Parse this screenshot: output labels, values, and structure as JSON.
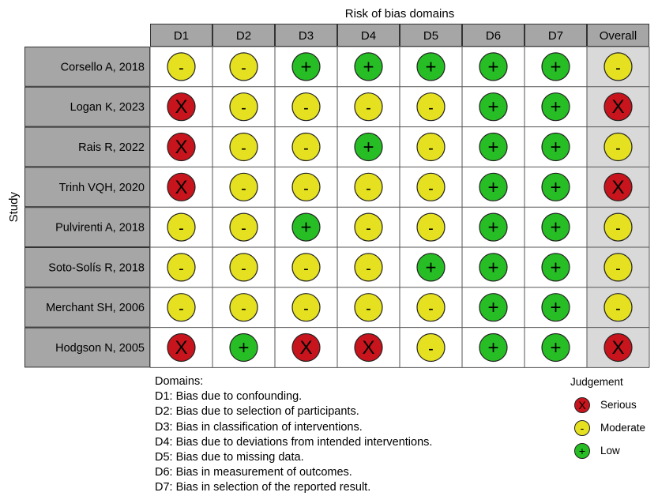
{
  "chart_data": {
    "type": "table",
    "title": "Risk of bias domains",
    "ylabel": "Study",
    "columns": [
      "D1",
      "D2",
      "D3",
      "D4",
      "D5",
      "D6",
      "D7",
      "Overall"
    ],
    "rows": [
      {
        "study": "Corsello A, 2018",
        "judgements": [
          "-",
          "-",
          "+",
          "+",
          "+",
          "+",
          "+",
          "-"
        ]
      },
      {
        "study": "Logan K, 2023",
        "judgements": [
          "X",
          "-",
          "-",
          "-",
          "-",
          "+",
          "+",
          "X"
        ]
      },
      {
        "study": "Rais R, 2022",
        "judgements": [
          "X",
          "-",
          "-",
          "+",
          "-",
          "+",
          "+",
          "-"
        ]
      },
      {
        "study": "Trinh VQH, 2020",
        "judgements": [
          "X",
          "-",
          "-",
          "-",
          "-",
          "+",
          "+",
          "X"
        ]
      },
      {
        "study": "Pulvirenti A, 2018",
        "judgements": [
          "-",
          "-",
          "+",
          "-",
          "-",
          "+",
          "+",
          "-"
        ]
      },
      {
        "study": "Soto-Solís R, 2018",
        "judgements": [
          "-",
          "-",
          "-",
          "-",
          "+",
          "+",
          "+",
          "-"
        ]
      },
      {
        "study": "Merchant SH, 2006",
        "judgements": [
          "-",
          "-",
          "-",
          "-",
          "-",
          "+",
          "+",
          "-"
        ]
      },
      {
        "study": "Hodgson N, 2005",
        "judgements": [
          "X",
          "+",
          "X",
          "X",
          "-",
          "+",
          "+",
          "X"
        ]
      }
    ],
    "symbol_colors": {
      "X": "#c8141c",
      "-": "#e5e020",
      "+": "#26be24"
    }
  },
  "domains_key": {
    "heading": "Domains:",
    "items": [
      "D1: Bias due to confounding.",
      "D2: Bias due to selection of participants.",
      "D3: Bias in classification of interventions.",
      "D4: Bias due to deviations from intended interventions.",
      "D5: Bias due to missing data.",
      "D6: Bias in measurement of outcomes.",
      "D7: Bias in selection of the reported result."
    ]
  },
  "legend": {
    "title": "Judgement",
    "items": [
      {
        "symbol": "X",
        "label": "Serious",
        "color": "#c8141c"
      },
      {
        "symbol": "-",
        "label": "Moderate",
        "color": "#e5e020"
      },
      {
        "symbol": "+",
        "label": "Low",
        "color": "#26be24"
      }
    ]
  }
}
